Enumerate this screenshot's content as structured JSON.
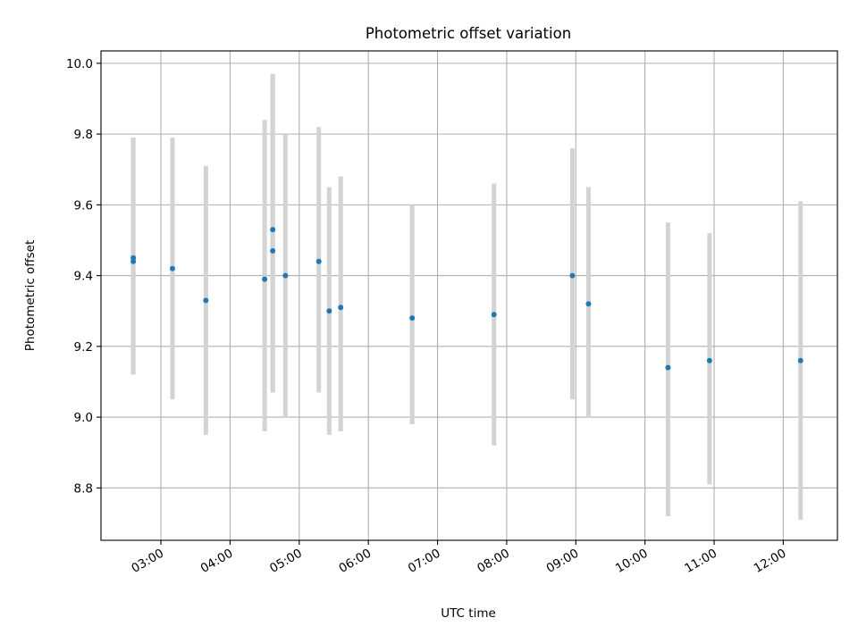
{
  "chart_data": {
    "type": "scatter",
    "title": "Photometric offset variation",
    "xlabel": "UTC time",
    "ylabel": "Photometric offset",
    "xlim": [
      "02:08",
      "12:47"
    ],
    "ylim": [
      8.652,
      10.035
    ],
    "x_ticks": [
      "03:00",
      "04:00",
      "05:00",
      "06:00",
      "07:00",
      "08:00",
      "09:00",
      "10:00",
      "11:00",
      "12:00"
    ],
    "y_ticks": [
      "8.8",
      "9.0",
      "9.2",
      "9.4",
      "9.6",
      "9.8",
      "10.0"
    ],
    "grid": true,
    "colors": {
      "points": "#1f77b4",
      "error_bars": "#d3d3d3",
      "grid": "#b0b0b0"
    },
    "points": [
      {
        "x": "02:36",
        "y": 9.45,
        "y_low": 9.12,
        "y_high": 9.79
      },
      {
        "x": "02:36",
        "y": 9.44,
        "y_low": 9.12,
        "y_high": 9.79
      },
      {
        "x": "03:10",
        "y": 9.42,
        "y_low": 9.05,
        "y_high": 9.79
      },
      {
        "x": "03:39",
        "y": 9.33,
        "y_low": 8.95,
        "y_high": 9.71
      },
      {
        "x": "04:30",
        "y": 9.39,
        "y_low": 8.96,
        "y_high": 9.84
      },
      {
        "x": "04:37",
        "y": 9.53,
        "y_low": 9.07,
        "y_high": 9.97
      },
      {
        "x": "04:37",
        "y": 9.47,
        "y_low": 9.07,
        "y_high": 9.97
      },
      {
        "x": "04:48",
        "y": 9.4,
        "y_low": 9.0,
        "y_high": 9.8
      },
      {
        "x": "05:17",
        "y": 9.44,
        "y_low": 9.07,
        "y_high": 9.82
      },
      {
        "x": "05:26",
        "y": 9.3,
        "y_low": 8.95,
        "y_high": 9.65
      },
      {
        "x": "05:36",
        "y": 9.31,
        "y_low": 8.96,
        "y_high": 9.68
      },
      {
        "x": "06:38",
        "y": 9.28,
        "y_low": 8.98,
        "y_high": 9.6
      },
      {
        "x": "07:49",
        "y": 9.29,
        "y_low": 8.92,
        "y_high": 9.66
      },
      {
        "x": "08:57",
        "y": 9.4,
        "y_low": 9.05,
        "y_high": 9.76
      },
      {
        "x": "09:11",
        "y": 9.32,
        "y_low": 9.0,
        "y_high": 9.65
      },
      {
        "x": "10:20",
        "y": 9.14,
        "y_low": 8.72,
        "y_high": 9.55
      },
      {
        "x": "10:56",
        "y": 9.16,
        "y_low": 8.81,
        "y_high": 9.52
      },
      {
        "x": "12:15",
        "y": 9.16,
        "y_low": 8.71,
        "y_high": 9.61
      }
    ]
  }
}
